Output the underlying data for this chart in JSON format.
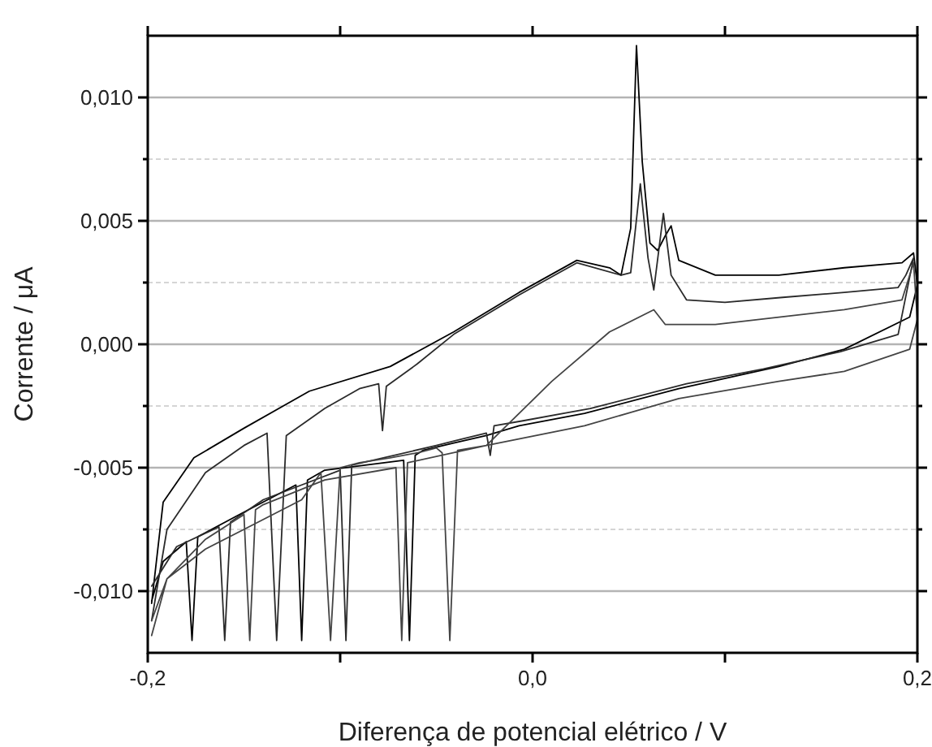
{
  "chart_data": {
    "type": "line",
    "xlabel": "Diferença de potencial elétrico / V",
    "ylabel": "Corrente / μA",
    "xlim": [
      -0.2,
      0.2
    ],
    "xticks": [
      {
        "value": -0.2,
        "label": "-0,2"
      },
      {
        "value": -0.1,
        "label": null
      },
      {
        "value": 0,
        "label": "0,0"
      },
      {
        "value": 0.1,
        "label": null
      },
      {
        "value": 0.2,
        "label": "0,2"
      }
    ],
    "ylim": [
      -0.0125,
      0.0125
    ],
    "yticks": [
      {
        "value": -0.01,
        "label": "-0,010"
      },
      {
        "value": -0.0075,
        "label": null
      },
      {
        "value": -0.005,
        "label": "-0,005"
      },
      {
        "value": -0.0025,
        "label": null
      },
      {
        "value": 0,
        "label": "0,000"
      },
      {
        "value": 0.0025,
        "label": null
      },
      {
        "value": 0.005,
        "label": "0,005"
      },
      {
        "value": 0.0075,
        "label": null
      },
      {
        "value": 0.01,
        "label": "0,010"
      }
    ],
    "grid": "y",
    "marker": "none",
    "line_style": "solid",
    "series": [
      {
        "color": "#000000",
        "x": [
          -0.198,
          -0.192,
          -0.176,
          -0.15,
          -0.116,
          -0.074,
          -0.041,
          -0.007,
          0.023,
          0.04,
          0.046,
          0.051,
          0.054,
          0.057,
          0.061,
          0.065,
          0.069,
          0.072,
          0.076,
          0.095,
          0.128,
          0.162,
          0.192,
          0.198,
          0.2,
          0.196,
          0.162,
          0.128,
          0.076,
          0.027,
          -0.007,
          -0.024,
          -0.041,
          -0.057,
          -0.061,
          -0.064,
          -0.067,
          -0.108,
          -0.117,
          -0.12,
          -0.123,
          -0.15,
          -0.174,
          -0.177,
          -0.18,
          -0.192,
          -0.198
        ],
        "values": [
          -0.0105,
          -0.0064,
          -0.0046,
          -0.0034,
          -0.0019,
          -0.0009,
          0.0005,
          0.0021,
          0.0034,
          0.0031,
          0.0028,
          0.0047,
          0.0121,
          0.0074,
          0.0041,
          0.0038,
          0.0044,
          0.0048,
          0.0034,
          0.0028,
          0.0028,
          0.0031,
          0.0033,
          0.0037,
          0.0024,
          0.0011,
          -0.0002,
          -0.0009,
          -0.0018,
          -0.0028,
          -0.0033,
          -0.0037,
          -0.004,
          -0.0043,
          -0.0045,
          -0.012,
          -0.0047,
          -0.0051,
          -0.0055,
          -0.012,
          -0.0057,
          -0.0068,
          -0.0078,
          -0.012,
          -0.008,
          -0.0088,
          -0.0104
        ]
      },
      {
        "color": "#2a2a2a",
        "x": [
          -0.198,
          -0.19,
          -0.17,
          -0.15,
          -0.138,
          -0.133,
          -0.128,
          -0.108,
          -0.09,
          -0.08,
          -0.078,
          -0.076,
          -0.06,
          -0.041,
          -0.007,
          0.023,
          0.046,
          0.051,
          0.056,
          0.06,
          0.063,
          0.068,
          0.072,
          0.08,
          0.1,
          0.13,
          0.162,
          0.19,
          0.194,
          0.198,
          0.19,
          0.16,
          0.12,
          0.08,
          0.03,
          -0.005,
          -0.02,
          -0.022,
          -0.024,
          -0.04,
          -0.05,
          -0.094,
          -0.097,
          -0.1,
          -0.12,
          -0.14,
          -0.157,
          -0.16,
          -0.163,
          -0.185,
          -0.198
        ],
        "values": [
          -0.0112,
          -0.0075,
          -0.0052,
          -0.0041,
          -0.0036,
          -0.012,
          -0.0037,
          -0.0026,
          -0.0018,
          -0.0016,
          -0.0035,
          -0.0017,
          -0.0008,
          0.0004,
          0.002,
          0.0033,
          0.0028,
          0.0029,
          0.0065,
          0.0035,
          0.0022,
          0.0053,
          0.0028,
          0.0018,
          0.0017,
          0.0019,
          0.0021,
          0.0023,
          0.0028,
          0.0035,
          0.0004,
          -0.0003,
          -0.001,
          -0.0016,
          -0.0026,
          -0.0031,
          -0.0033,
          -0.0045,
          -0.0036,
          -0.0039,
          -0.0041,
          -0.0049,
          -0.012,
          -0.0051,
          -0.0057,
          -0.0063,
          -0.0072,
          -0.012,
          -0.0074,
          -0.0082,
          -0.0098
        ]
      },
      {
        "color": "#444444",
        "x": [
          -0.198,
          -0.19,
          -0.17,
          -0.15,
          -0.12,
          -0.11,
          -0.105,
          -0.1,
          -0.09,
          -0.074,
          -0.06,
          -0.05,
          -0.047,
          -0.043,
          -0.039,
          -0.024,
          0.01,
          0.04,
          0.063,
          0.069,
          0.095,
          0.128,
          0.162,
          0.192,
          0.198,
          0.2,
          0.196,
          0.162,
          0.128,
          0.076,
          0.027,
          -0.024,
          -0.065,
          -0.068,
          -0.071,
          -0.108,
          -0.14,
          -0.144,
          -0.147,
          -0.15,
          -0.17,
          -0.19,
          -0.198
        ],
        "values": [
          -0.0118,
          -0.0095,
          -0.0083,
          -0.0075,
          -0.0063,
          -0.0052,
          -0.012,
          -0.005,
          -0.0048,
          -0.0046,
          -0.0044,
          -0.0042,
          -0.0044,
          -0.012,
          -0.0043,
          -0.0041,
          -0.0015,
          0.0005,
          0.0014,
          0.0008,
          0.0008,
          0.0011,
          0.0014,
          0.0018,
          0.0033,
          0.001,
          -0.0002,
          -0.0011,
          -0.0015,
          -0.0022,
          -0.0033,
          -0.0041,
          -0.0048,
          -0.012,
          -0.005,
          -0.0055,
          -0.0065,
          -0.0067,
          -0.012,
          -0.0069,
          -0.0079,
          -0.0095,
          -0.0112
        ]
      }
    ]
  }
}
